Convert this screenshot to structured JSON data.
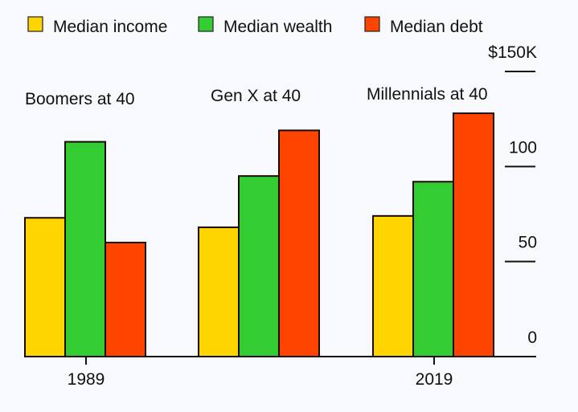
{
  "chart_data": {
    "type": "bar",
    "title": "",
    "xlabel": "",
    "ylabel": "",
    "ylim": [
      0,
      150
    ],
    "grid": false,
    "legend_position": "top-left",
    "categories": [
      "1989",
      "",
      "2019"
    ],
    "group_labels": [
      "Boomers at 40",
      "Gen X at 40",
      "Millennials at 40"
    ],
    "x_tick_labels": [
      "1989",
      "2019"
    ],
    "y_ticks": [
      0,
      50,
      100,
      150
    ],
    "y_tick_labels": [
      "0",
      "50",
      "100",
      "$150K"
    ],
    "series": [
      {
        "name": "Median income",
        "color": "#ffd500",
        "values": [
          73,
          68,
          74
        ]
      },
      {
        "name": "Median wealth",
        "color": "#33cc33",
        "values": [
          113,
          95,
          92
        ]
      },
      {
        "name": "Median debt",
        "color": "#ff4400",
        "values": [
          60,
          119,
          128
        ]
      }
    ]
  }
}
